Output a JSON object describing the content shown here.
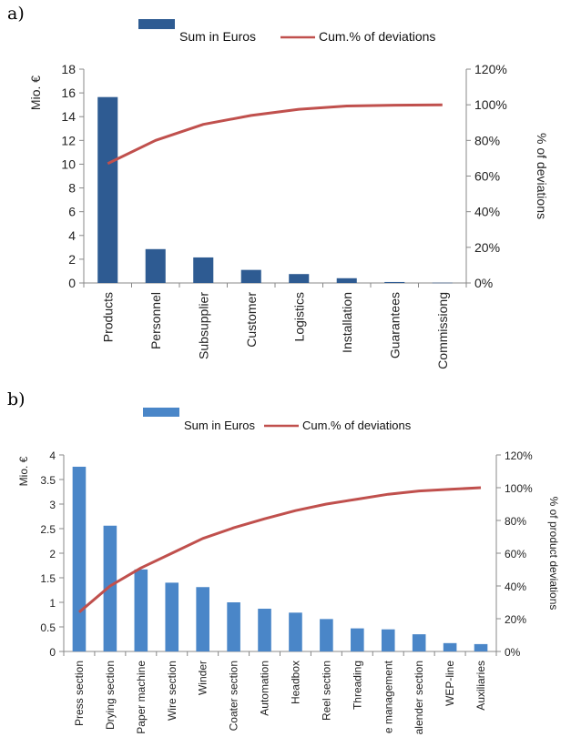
{
  "panels": [
    {
      "letter": "a)",
      "chart_data": {
        "type": "bar",
        "categories": [
          "Products",
          "Personnel",
          "Subsupplier",
          "Customer",
          "Logistics",
          "Installation",
          "Guarantees",
          "Commissiong"
        ],
        "series": [
          {
            "name": "Sum in Euros",
            "type": "bar",
            "axis": "left",
            "color": "#2e5b92",
            "values": [
              15.65,
              2.85,
              2.15,
              1.1,
              0.75,
              0.4,
              0.08,
              0.02
            ]
          },
          {
            "name": "Cum.% of deviations",
            "type": "line",
            "axis": "right",
            "color": "#c0504d",
            "values": [
              67,
              80,
              89,
              94,
              97.5,
              99.3,
              99.8,
              100
            ]
          }
        ],
        "ylabel": "Mio. €",
        "y2label": "% of deviations",
        "ylim": [
          0,
          18
        ],
        "yticks": [
          "0",
          "2",
          "4",
          "6",
          "8",
          "10",
          "12",
          "14",
          "16",
          "18"
        ],
        "y2lim": [
          0,
          120
        ],
        "y2ticks": [
          "0%",
          "20%",
          "40%",
          "60%",
          "80%",
          "100%",
          "120%"
        ],
        "legend": "top",
        "grid": false
      }
    },
    {
      "letter": "b)",
      "chart_data": {
        "type": "bar",
        "categories": [
          "Press section",
          "Drying section",
          "Paper machine",
          "Wire section",
          "Winder",
          "Coater section",
          "Automation",
          "Headbox",
          "Reel section",
          "Threading",
          "e management",
          "alender section",
          "WEP-line",
          "Auxiliaries"
        ],
        "series": [
          {
            "name": "Sum in Euros",
            "type": "bar",
            "axis": "left",
            "color": "#4a86c8",
            "values": [
              3.76,
              2.56,
              1.67,
              1.4,
              1.31,
              1.0,
              0.87,
              0.79,
              0.66,
              0.47,
              0.45,
              0.35,
              0.17,
              0.15
            ]
          },
          {
            "name": "Cum.% of deviations",
            "type": "line",
            "axis": "right",
            "color": "#c0504d",
            "values": [
              24,
              40,
              51,
              60,
              69,
              75.5,
              81,
              86,
              90,
              93,
              96,
              98,
              99,
              100
            ]
          }
        ],
        "ylabel": "Mio. €",
        "y2label": "% of product deviations",
        "ylim": [
          0,
          4
        ],
        "yticks": [
          "0",
          "0.5",
          "1",
          "1.5",
          "2",
          "2.5",
          "3",
          "3.5",
          "4"
        ],
        "y2lim": [
          0,
          120
        ],
        "y2ticks": [
          "0%",
          "20%",
          "40%",
          "60%",
          "80%",
          "100%",
          "120%"
        ],
        "legend": "top",
        "grid": false
      }
    }
  ]
}
